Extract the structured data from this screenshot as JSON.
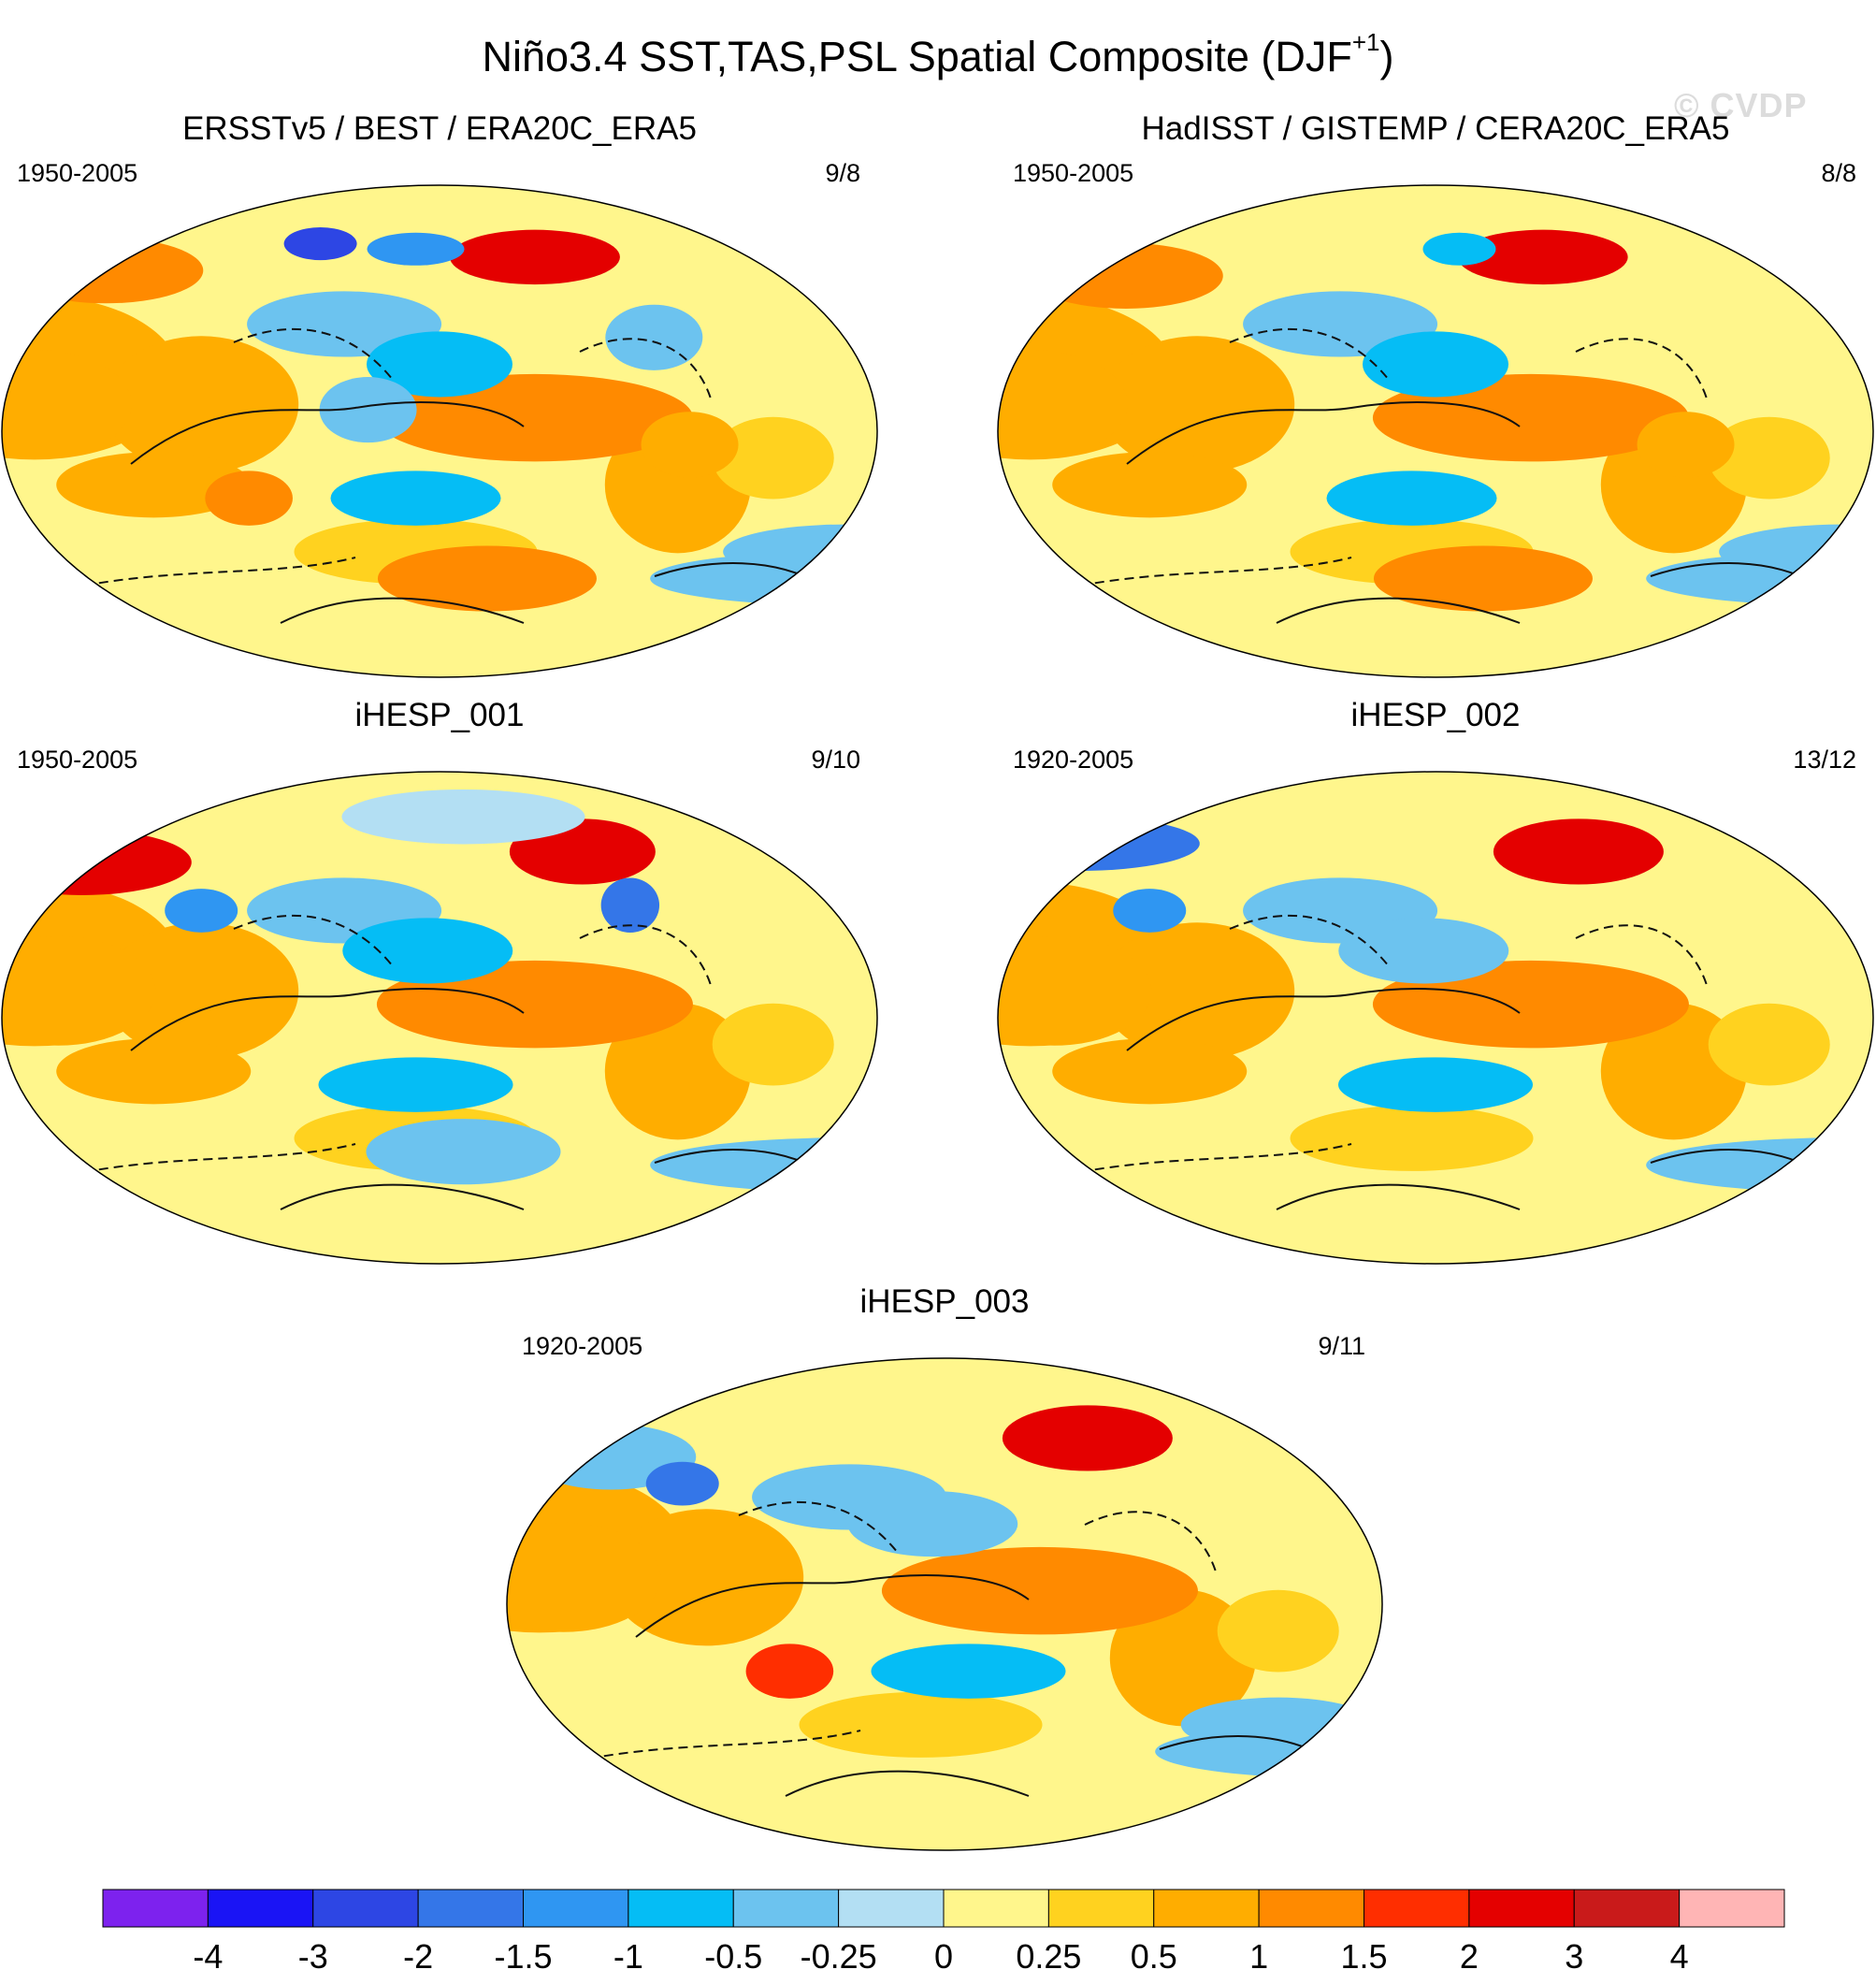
{
  "page": {
    "title_main": "Niño3.4 SST,TAS,PSL Spatial Composite (DJF",
    "title_sup": "+1",
    "title_close": ")",
    "watermark": "© CVDP"
  },
  "chart_data": [
    {
      "type": "heatmap",
      "title": "ERSSTv5 / BEST / ERA20C_ERA5",
      "period": "1950-2005",
      "count": "9/8",
      "features": [
        {
          "lon": -135,
          "lat": 0,
          "rx": 40,
          "ry": 7,
          "v": 2
        },
        {
          "lon": -120,
          "lat": -2,
          "rx": 30,
          "ry": 4,
          "v": 3
        },
        {
          "lon": -120,
          "lat": 5,
          "rx": 65,
          "ry": 16,
          "v": 1
        },
        {
          "lon": -160,
          "lat": 25,
          "rx": 30,
          "ry": 12,
          "v": -1
        },
        {
          "lon": -170,
          "lat": -25,
          "rx": 35,
          "ry": 10,
          "v": -1
        },
        {
          "lon": 170,
          "lat": 8,
          "rx": 20,
          "ry": 12,
          "v": -0.5
        },
        {
          "lon": -140,
          "lat": -55,
          "rx": 45,
          "ry": 12,
          "v": 1
        },
        {
          "lon": -120,
          "lat": 65,
          "rx": 35,
          "ry": 10,
          "v": 2.5
        },
        {
          "lon": -170,
          "lat": 68,
          "rx": 20,
          "ry": 6,
          "v": -1.5
        },
        {
          "lon": 60,
          "lat": 60,
          "rx": 40,
          "ry": 12,
          "v": 1
        },
        {
          "lon": 150,
          "lat": 70,
          "rx": 15,
          "ry": 6,
          "v": -3
        },
        {
          "lon": 30,
          "lat": 10,
          "rx": 40,
          "ry": 20,
          "v": 0.5
        },
        {
          "lon": 80,
          "lat": -20,
          "rx": 40,
          "ry": 12,
          "v": 0.5
        },
        {
          "lon": -55,
          "lat": -5,
          "rx": 20,
          "ry": 12,
          "v": 0.5
        },
        {
          "lon": 10,
          "lat": -45,
          "rx": 50,
          "ry": 10,
          "v": -0.5
        },
        {
          "lon": -70,
          "lat": 35,
          "rx": 20,
          "ry": 12,
          "v": -0.5
        },
        {
          "lon": 120,
          "lat": -25,
          "rx": 18,
          "ry": 10,
          "v": 1
        }
      ]
    },
    {
      "type": "heatmap",
      "title": "HadISST / GISTEMP / CERA20C_ERA5",
      "period": "1950-2005",
      "count": "8/8",
      "features": [
        {
          "lon": -135,
          "lat": 0,
          "rx": 40,
          "ry": 7,
          "v": 2
        },
        {
          "lon": -125,
          "lat": -1,
          "rx": 30,
          "ry": 4,
          "v": 3
        },
        {
          "lon": -120,
          "lat": 5,
          "rx": 65,
          "ry": 16,
          "v": 1
        },
        {
          "lon": -160,
          "lat": 25,
          "rx": 30,
          "ry": 12,
          "v": -1
        },
        {
          "lon": -170,
          "lat": -25,
          "rx": 35,
          "ry": 10,
          "v": -1
        },
        {
          "lon": -140,
          "lat": -55,
          "rx": 45,
          "ry": 12,
          "v": 1
        },
        {
          "lon": -115,
          "lat": 65,
          "rx": 35,
          "ry": 10,
          "v": 2.5
        },
        {
          "lon": 70,
          "lat": 58,
          "rx": 40,
          "ry": 12,
          "v": 1
        },
        {
          "lon": 30,
          "lat": 10,
          "rx": 40,
          "ry": 20,
          "v": 0.5
        },
        {
          "lon": 80,
          "lat": -20,
          "rx": 40,
          "ry": 12,
          "v": 0.5
        },
        {
          "lon": -55,
          "lat": -5,
          "rx": 20,
          "ry": 12,
          "v": 0.5
        },
        {
          "lon": 10,
          "lat": -45,
          "rx": 50,
          "ry": 10,
          "v": -0.5
        },
        {
          "lon": -150,
          "lat": 68,
          "rx": 15,
          "ry": 6,
          "v": -1
        }
      ]
    },
    {
      "type": "heatmap",
      "title": "iHESP_001",
      "period": "1950-2005",
      "count": "9/10",
      "features": [
        {
          "lon": -130,
          "lat": 0,
          "rx": 45,
          "ry": 8,
          "v": 2
        },
        {
          "lon": -120,
          "lat": 5,
          "rx": 65,
          "ry": 16,
          "v": 1
        },
        {
          "lon": -165,
          "lat": 25,
          "rx": 35,
          "ry": 12,
          "v": -1
        },
        {
          "lon": -170,
          "lat": -25,
          "rx": 40,
          "ry": 10,
          "v": -1
        },
        {
          "lon": -100,
          "lat": 62,
          "rx": 30,
          "ry": 12,
          "v": 2.5
        },
        {
          "lon": -80,
          "lat": 42,
          "rx": 12,
          "ry": 10,
          "v": -2
        },
        {
          "lon": 50,
          "lat": 58,
          "rx": 45,
          "ry": 12,
          "v": 2
        },
        {
          "lon": 100,
          "lat": 40,
          "rx": 15,
          "ry": 8,
          "v": -1.5
        },
        {
          "lon": 40,
          "lat": 10,
          "rx": 40,
          "ry": 20,
          "v": 0.5
        },
        {
          "lon": 80,
          "lat": -20,
          "rx": 40,
          "ry": 12,
          "v": 0.5
        },
        {
          "lon": -150,
          "lat": -50,
          "rx": 40,
          "ry": 12,
          "v": -0.5
        },
        {
          "lon": -150,
          "lat": 75,
          "rx": 50,
          "ry": 10,
          "v": -0.25
        }
      ]
    },
    {
      "type": "heatmap",
      "title": "iHESP_002",
      "period": "1920-2005",
      "count": "13/12",
      "features": [
        {
          "lon": -130,
          "lat": 0,
          "rx": 45,
          "ry": 8,
          "v": 1.5
        },
        {
          "lon": -120,
          "lat": 5,
          "rx": 65,
          "ry": 16,
          "v": 1
        },
        {
          "lon": -165,
          "lat": 25,
          "rx": 35,
          "ry": 12,
          "v": -0.5
        },
        {
          "lon": -160,
          "lat": -25,
          "rx": 40,
          "ry": 10,
          "v": -1
        },
        {
          "lon": -100,
          "lat": 62,
          "rx": 35,
          "ry": 12,
          "v": 2.5
        },
        {
          "lon": 50,
          "lat": 65,
          "rx": 50,
          "ry": 10,
          "v": -2
        },
        {
          "lon": 80,
          "lat": 40,
          "rx": 15,
          "ry": 8,
          "v": -1.5
        },
        {
          "lon": 40,
          "lat": 10,
          "rx": 40,
          "ry": 20,
          "v": 0.5
        },
        {
          "lon": 80,
          "lat": -20,
          "rx": 40,
          "ry": 12,
          "v": 0.5
        },
        {
          "lon": 20,
          "lat": 70,
          "rx": 20,
          "ry": 8,
          "v": -0.5
        }
      ]
    },
    {
      "type": "heatmap",
      "title": "iHESP_003",
      "period": "1920-2005",
      "count": "9/11",
      "features": [
        {
          "lon": -130,
          "lat": 0,
          "rx": 45,
          "ry": 8,
          "v": 2
        },
        {
          "lon": -120,
          "lat": 5,
          "rx": 65,
          "ry": 16,
          "v": 1
        },
        {
          "lon": -165,
          "lat": 30,
          "rx": 35,
          "ry": 12,
          "v": -0.5
        },
        {
          "lon": -150,
          "lat": -25,
          "rx": 40,
          "ry": 10,
          "v": -1
        },
        {
          "lon": -100,
          "lat": 62,
          "rx": 35,
          "ry": 12,
          "v": 2.5
        },
        {
          "lon": 60,
          "lat": 55,
          "rx": 35,
          "ry": 12,
          "v": -0.5
        },
        {
          "lon": 90,
          "lat": 45,
          "rx": 15,
          "ry": 8,
          "v": -2
        },
        {
          "lon": 40,
          "lat": 10,
          "rx": 40,
          "ry": 20,
          "v": 0.5
        },
        {
          "lon": 135,
          "lat": -25,
          "rx": 18,
          "ry": 10,
          "v": 1.5
        },
        {
          "lon": -20,
          "lat": -45,
          "rx": 40,
          "ry": 10,
          "v": -0.5
        }
      ]
    }
  ],
  "colorbar": {
    "colors": [
      "#7d22ee",
      "#1a14f5",
      "#2d46e4",
      "#3476e8",
      "#2f96f2",
      "#05bdf5",
      "#6cc3ef",
      "#b3dff3",
      "#fff68c",
      "#ffd21f",
      "#ffad00",
      "#ff8a00",
      "#ff2e00",
      "#e40000",
      "#c91a1a",
      "#ffb5b5"
    ],
    "labels": [
      "-4",
      "-3",
      "-2",
      "-1.5",
      "-1",
      "-0.5",
      "-0.25",
      "0",
      "0.25",
      "0.5",
      "1",
      "1.5",
      "2",
      "3",
      "4"
    ],
    "levels": [
      -4,
      -3,
      -2,
      -1.5,
      -1,
      -0.5,
      -0.25,
      0,
      0.25,
      0.5,
      1,
      1.5,
      2,
      3,
      4
    ]
  }
}
